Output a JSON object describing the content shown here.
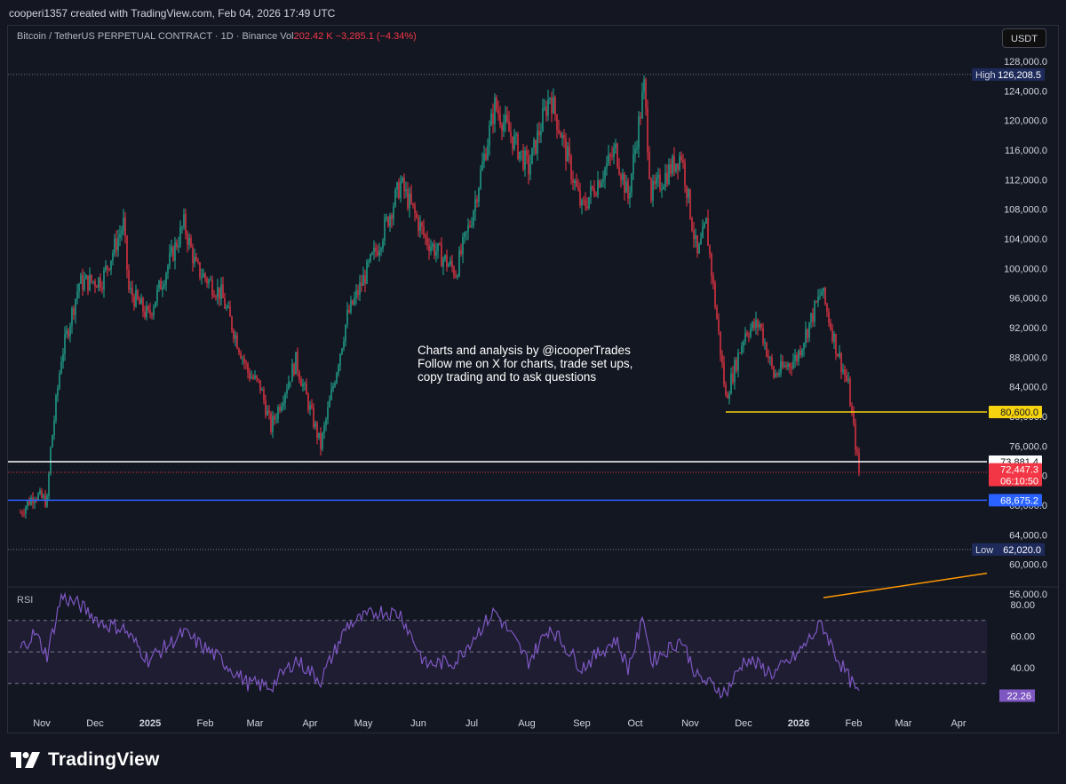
{
  "header": {
    "caption": "cooperi1357 created with TradingView.com, Feb 04, 2026 17:49 UTC"
  },
  "legend": {
    "symbol_text": "Bitcoin / TetherUS PERPETUAL CONTRACT · 1D · Binance",
    "vol_label": "Vol",
    "vol_value": "202.42 K",
    "change_text": "−3,285.1 (−4.34%)"
  },
  "currency_button": "USDT",
  "annotation": {
    "lines": [
      "Charts and analysis by @icooperTrades",
      "Follow me on X for charts, trade set ups,",
      "copy trading and to ask questions"
    ]
  },
  "rsi_label": "RSI",
  "brand": {
    "name": "TradingView"
  },
  "colors": {
    "bull": "#22ab94",
    "bear": "#f23645",
    "rsi_line": "#7e57c2",
    "support_yellow": "#f5d30e",
    "support_blue": "#2962ff",
    "level_white": "#ffffff",
    "trendline": "#ff9800"
  },
  "chart_data": [
    {
      "type": "candlestick",
      "title": "Bitcoin / TetherUS PERPETUAL CONTRACT · 1D · Binance",
      "ylim": [
        54000,
        130000
      ],
      "y_ticks": [
        56000,
        60000,
        64000,
        68000,
        72000,
        76000,
        80000,
        84000,
        88000,
        92000,
        96000,
        100000,
        104000,
        108000,
        112000,
        116000,
        120000,
        124000,
        128000
      ],
      "y_tick_labels": [
        "56,000.0",
        "60,000.0",
        "64,000.0",
        "68,000.0",
        "72,000.0",
        "76,000.0",
        "80,000.0",
        "84,000.0",
        "88,000.0",
        "92,000.0",
        "96,000.0",
        "100,000.0",
        "104,000.0",
        "108,000.0",
        "112,000.0",
        "116,000.0",
        "120,000.0",
        "124,000.0",
        "128,000.0"
      ],
      "x_ticks": [
        "Nov",
        "Dec",
        "2025",
        "Feb",
        "Mar",
        "Apr",
        "May",
        "Jun",
        "Jul",
        "Aug",
        "Sep",
        "Oct",
        "Nov",
        "Dec",
        "2026",
        "Feb",
        "Mar",
        "Apr"
      ],
      "grid": false,
      "price_path": [
        [
          "2024-10-20",
          67000
        ],
        [
          "2024-10-28",
          69500
        ],
        [
          "2024-11-04",
          68500
        ],
        [
          "2024-11-06",
          75500
        ],
        [
          "2024-11-12",
          88000
        ],
        [
          "2024-11-22",
          98000
        ],
        [
          "2024-12-05",
          98500
        ],
        [
          "2024-12-17",
          106000
        ],
        [
          "2024-12-20",
          97000
        ],
        [
          "2024-12-31",
          93500
        ],
        [
          "2025-01-20",
          106000
        ],
        [
          "2025-01-27",
          100000
        ],
        [
          "2025-02-10",
          96500
        ],
        [
          "2025-02-25",
          86000
        ],
        [
          "2025-03-04",
          84000
        ],
        [
          "2025-03-10",
          78500
        ],
        [
          "2025-03-24",
          87500
        ],
        [
          "2025-04-07",
          76000
        ],
        [
          "2025-04-10",
          79500
        ],
        [
          "2025-04-22",
          93500
        ],
        [
          "2025-05-10",
          103500
        ],
        [
          "2025-05-22",
          111500
        ],
        [
          "2025-06-05",
          104000
        ],
        [
          "2025-06-22",
          99500
        ],
        [
          "2025-07-01",
          107000
        ],
        [
          "2025-07-14",
          122000
        ],
        [
          "2025-08-02",
          113500
        ],
        [
          "2025-08-14",
          123500
        ],
        [
          "2025-09-01",
          108000
        ],
        [
          "2025-09-20",
          116000
        ],
        [
          "2025-09-27",
          109500
        ],
        [
          "2025-10-06",
          124500
        ],
        [
          "2025-10-10",
          110000
        ],
        [
          "2025-10-27",
          115500
        ],
        [
          "2025-11-05",
          101500
        ],
        [
          "2025-11-10",
          106000
        ],
        [
          "2025-11-21",
          82500
        ],
        [
          "2025-12-02",
          91500
        ],
        [
          "2025-12-10",
          92500
        ],
        [
          "2025-12-18",
          85500
        ],
        [
          "2025-12-31",
          88000
        ],
        [
          "2026-01-14",
          97000
        ],
        [
          "2026-01-22",
          89500
        ],
        [
          "2026-01-29",
          84000
        ],
        [
          "2026-02-04",
          72447.3
        ]
      ],
      "horizontal_levels": [
        {
          "label": "High",
          "value": 126208.5,
          "text": "126,208.5"
        },
        {
          "value": 80600,
          "text": "80,600.0",
          "color": "#f5d30e"
        },
        {
          "value": 73881.4,
          "text": "73,881.4",
          "color": "#ffffff"
        },
        {
          "value": 72447.3,
          "text": "72,447.3",
          "countdown": "06:10:50",
          "color": "#f23645"
        },
        {
          "value": 68675.2,
          "text": "68,675.2",
          "color": "#2962ff"
        },
        {
          "label": "Low",
          "value": 62020.0,
          "text": "62,020.0"
        }
      ]
    },
    {
      "type": "line",
      "title": "RSI",
      "ylim": [
        10,
        90
      ],
      "y_ticks": [
        40,
        60,
        80
      ],
      "y_tick_labels": [
        "40.00",
        "60.00",
        "80.00"
      ],
      "bands": [
        30,
        50,
        70
      ],
      "current_value": 22.26,
      "current_text": "22.26",
      "rsi_path": [
        [
          "2024-10-20",
          52
        ],
        [
          "2024-10-28",
          62
        ],
        [
          "2024-11-04",
          48
        ],
        [
          "2024-11-12",
          85
        ],
        [
          "2024-11-22",
          80
        ],
        [
          "2024-12-05",
          68
        ],
        [
          "2024-12-17",
          65
        ],
        [
          "2024-12-31",
          45
        ],
        [
          "2025-01-20",
          62
        ],
        [
          "2025-02-10",
          45
        ],
        [
          "2025-02-25",
          30
        ],
        [
          "2025-03-10",
          28
        ],
        [
          "2025-03-24",
          45
        ],
        [
          "2025-04-07",
          32
        ],
        [
          "2025-04-22",
          67
        ],
        [
          "2025-05-10",
          76
        ],
        [
          "2025-05-22",
          74
        ],
        [
          "2025-06-05",
          42
        ],
        [
          "2025-06-22",
          44
        ],
        [
          "2025-07-01",
          58
        ],
        [
          "2025-07-14",
          76
        ],
        [
          "2025-08-02",
          44
        ],
        [
          "2025-08-14",
          66
        ],
        [
          "2025-09-01",
          40
        ],
        [
          "2025-09-20",
          58
        ],
        [
          "2025-09-27",
          40
        ],
        [
          "2025-10-06",
          72
        ],
        [
          "2025-10-10",
          44
        ],
        [
          "2025-10-27",
          58
        ],
        [
          "2025-11-05",
          34
        ],
        [
          "2025-11-21",
          24
        ],
        [
          "2025-12-02",
          46
        ],
        [
          "2025-12-18",
          36
        ],
        [
          "2025-12-31",
          48
        ],
        [
          "2026-01-14",
          68
        ],
        [
          "2026-01-22",
          48
        ],
        [
          "2026-01-29",
          34
        ],
        [
          "2026-02-04",
          22
        ]
      ]
    }
  ]
}
